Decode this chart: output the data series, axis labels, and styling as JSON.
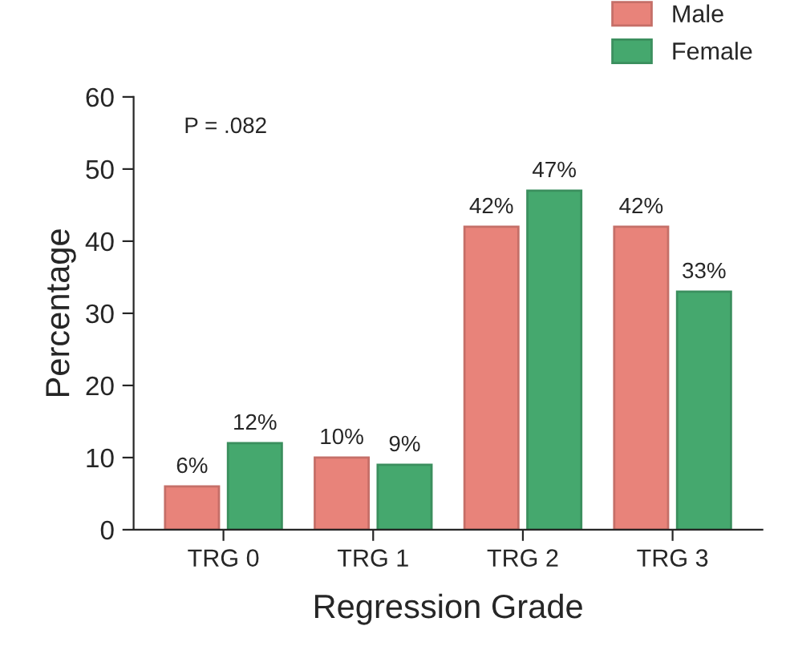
{
  "chart_data": {
    "type": "bar",
    "xlabel": "Regression Grade",
    "ylabel": "Percentage",
    "categories": [
      "TRG 0",
      "TRG 1",
      "TRG 2",
      "TRG 3"
    ],
    "series": [
      {
        "name": "Male",
        "color": "#e8837a",
        "values": [
          6,
          10,
          42,
          42
        ],
        "value_labels": [
          "6%",
          "10%",
          "42%",
          "42%"
        ]
      },
      {
        "name": "Female",
        "color": "#45a86e",
        "values": [
          12,
          9,
          47,
          33
        ],
        "value_labels": [
          "12%",
          "9%",
          "47%",
          "33%"
        ]
      }
    ],
    "ylim": [
      0,
      60
    ],
    "yticks": [
      0,
      10,
      20,
      30,
      40,
      50,
      60
    ],
    "grid": false,
    "legend": "top right",
    "annotations": [
      {
        "text": "P = .082"
      }
    ]
  }
}
